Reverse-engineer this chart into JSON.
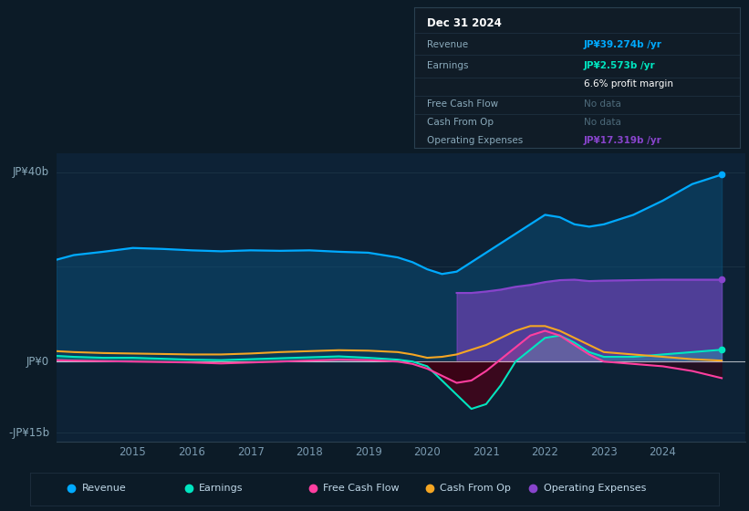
{
  "bg_color": "#0c1b27",
  "plot_bg_color": "#0d2236",
  "title": "Dec 31 2024",
  "ylabel_top": "JP¥40b",
  "ylabel_zero": "JP¥0",
  "ylabel_bottom": "-JP¥15b",
  "ylim": [
    -17,
    44
  ],
  "xlim": [
    2013.7,
    2025.4
  ],
  "xtick_labels": [
    "2015",
    "2016",
    "2017",
    "2018",
    "2019",
    "2020",
    "2021",
    "2022",
    "2023",
    "2024"
  ],
  "xtick_positions": [
    2015,
    2016,
    2017,
    2018,
    2019,
    2020,
    2021,
    2022,
    2023,
    2024
  ],
  "revenue_color": "#00aaff",
  "earnings_color": "#00e5c0",
  "fcf_color": "#ff3fa0",
  "cashfromop_color": "#f5a623",
  "opex_color": "#8844cc",
  "legend_items": [
    {
      "label": "Revenue",
      "color": "#00aaff"
    },
    {
      "label": "Earnings",
      "color": "#00e5c0"
    },
    {
      "label": "Free Cash Flow",
      "color": "#ff3fa0"
    },
    {
      "label": "Cash From Op",
      "color": "#f5a623"
    },
    {
      "label": "Operating Expenses",
      "color": "#8844cc"
    }
  ],
  "tooltip": {
    "date": "Dec 31 2024",
    "revenue_label": "Revenue",
    "revenue_val": "JP¥39.274b /yr",
    "earnings_label": "Earnings",
    "earnings_val": "JP¥2.573b /yr",
    "margin_val": "6.6% profit margin",
    "fcf_label": "Free Cash Flow",
    "fcf_val": "No data",
    "cashop_label": "Cash From Op",
    "cashop_val": "No data",
    "opex_label": "Operating Expenses",
    "opex_val": "JP¥17.319b /yr"
  },
  "years": [
    2013.7,
    2014.0,
    2014.5,
    2015.0,
    2015.5,
    2016.0,
    2016.5,
    2017.0,
    2017.5,
    2018.0,
    2018.5,
    2019.0,
    2019.5,
    2019.75,
    2020.0,
    2020.25,
    2020.5,
    2020.75,
    2021.0,
    2021.25,
    2021.5,
    2021.75,
    2022.0,
    2022.25,
    2022.5,
    2022.75,
    2023.0,
    2023.5,
    2024.0,
    2024.5,
    2025.0
  ],
  "revenue": [
    21.5,
    22.5,
    23.2,
    24.0,
    23.8,
    23.5,
    23.3,
    23.5,
    23.4,
    23.5,
    23.2,
    23.0,
    22.0,
    21.0,
    19.5,
    18.5,
    19.0,
    21.0,
    23.0,
    25.0,
    27.0,
    29.0,
    31.0,
    30.5,
    29.0,
    28.5,
    29.0,
    31.0,
    34.0,
    37.5,
    39.5
  ],
  "earnings": [
    1.2,
    1.0,
    0.8,
    0.8,
    0.6,
    0.4,
    0.3,
    0.5,
    0.7,
    0.9,
    1.1,
    0.8,
    0.4,
    0.0,
    -1.0,
    -4.0,
    -7.0,
    -10.0,
    -9.0,
    -5.0,
    0.0,
    2.5,
    5.0,
    5.5,
    4.0,
    2.0,
    1.0,
    1.0,
    1.5,
    2.0,
    2.5
  ],
  "fcf": [
    0.3,
    0.2,
    0.1,
    0.0,
    -0.1,
    -0.2,
    -0.4,
    -0.2,
    0.0,
    0.2,
    0.4,
    0.3,
    0.0,
    -0.5,
    -1.5,
    -3.0,
    -4.5,
    -4.0,
    -2.0,
    0.5,
    3.0,
    5.5,
    6.5,
    5.5,
    3.5,
    1.5,
    0.0,
    -0.5,
    -1.0,
    -2.0,
    -3.5
  ],
  "cashfromop": [
    2.2,
    2.0,
    1.8,
    1.7,
    1.6,
    1.5,
    1.5,
    1.7,
    2.0,
    2.2,
    2.4,
    2.3,
    2.0,
    1.5,
    0.8,
    1.0,
    1.5,
    2.5,
    3.5,
    5.0,
    6.5,
    7.5,
    7.5,
    6.5,
    5.0,
    3.5,
    2.0,
    1.5,
    1.0,
    0.5,
    0.2
  ],
  "opex": [
    null,
    null,
    null,
    null,
    null,
    null,
    null,
    null,
    null,
    null,
    null,
    null,
    null,
    null,
    null,
    null,
    14.5,
    14.5,
    14.8,
    15.2,
    15.8,
    16.2,
    16.8,
    17.2,
    17.3,
    17.0,
    17.1,
    17.2,
    17.3,
    17.3,
    17.3
  ]
}
